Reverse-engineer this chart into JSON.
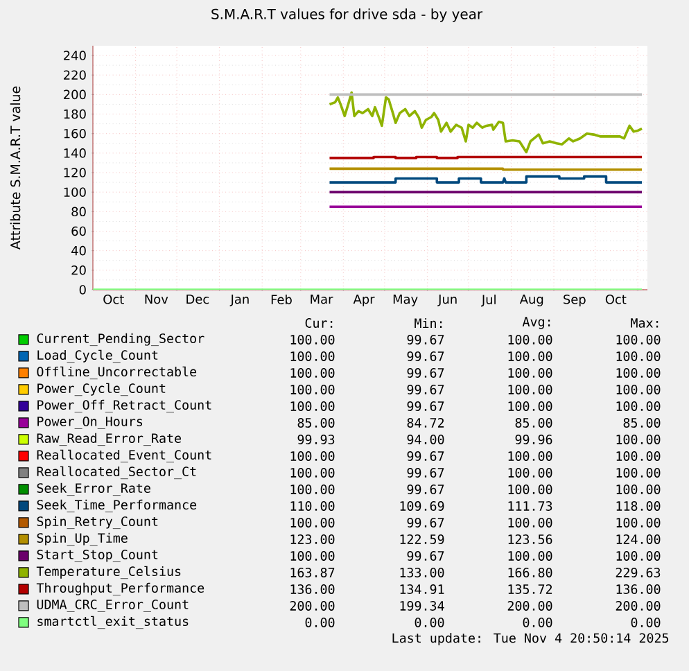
{
  "chart_data": {
    "type": "line",
    "title": "S.M.A.R.T values for drive sda - by year",
    "ylabel": "Attribute S.M.A.R.T value",
    "xlim": [
      "2024-10-01",
      "2025-11-08"
    ],
    "ylim": [
      0,
      250
    ],
    "yticks": [
      0,
      20,
      40,
      60,
      80,
      100,
      120,
      140,
      160,
      180,
      200,
      220,
      240
    ],
    "xticks": [
      {
        "value": "2024-10-16",
        "label": "Oct"
      },
      {
        "value": "2024-11-01",
        "label": null
      },
      {
        "value": "2024-11-16",
        "label": "Nov"
      },
      {
        "value": "2024-12-01",
        "label": null
      },
      {
        "value": "2024-12-16",
        "label": "Dec"
      },
      {
        "value": "2025-01-01",
        "label": null
      },
      {
        "value": "2025-01-16",
        "label": "Jan"
      },
      {
        "value": "2025-02-01",
        "label": null
      },
      {
        "value": "2025-02-15",
        "label": "Feb"
      },
      {
        "value": "2025-03-01",
        "label": null
      },
      {
        "value": "2025-03-16",
        "label": "Mar"
      },
      {
        "value": "2025-04-01",
        "label": null
      },
      {
        "value": "2025-04-16",
        "label": "Apr"
      },
      {
        "value": "2025-05-01",
        "label": null
      },
      {
        "value": "2025-05-16",
        "label": "May"
      },
      {
        "value": "2025-06-01",
        "label": null
      },
      {
        "value": "2025-06-16",
        "label": "Jun"
      },
      {
        "value": "2025-07-01",
        "label": null
      },
      {
        "value": "2025-07-16",
        "label": "Jul"
      },
      {
        "value": "2025-08-01",
        "label": null
      },
      {
        "value": "2025-08-16",
        "label": "Aug"
      },
      {
        "value": "2025-09-01",
        "label": null
      },
      {
        "value": "2025-09-16",
        "label": "Sep"
      },
      {
        "value": "2025-10-01",
        "label": null
      },
      {
        "value": "2025-10-16",
        "label": "Oct"
      },
      {
        "value": "2025-11-01",
        "label": null
      }
    ],
    "grid": true,
    "legend": "bottom",
    "series": [
      {
        "name": "Current_Pending_Sector",
        "color": "#00cc00",
        "values": [
          null,
          null
        ]
      },
      {
        "name": "Load_Cycle_Count",
        "color": "#0066b3",
        "values": [
          null,
          null
        ]
      },
      {
        "name": "Offline_Uncorrectable",
        "color": "#ff8000",
        "values": [
          null,
          null
        ]
      },
      {
        "name": "Power_Cycle_Count",
        "color": "#ffcc00",
        "values": [
          null,
          null
        ]
      },
      {
        "name": "Power_Off_Retract_Count",
        "color": "#330099",
        "values": [
          null,
          null
        ]
      },
      {
        "name": "Power_On_Hours",
        "color": "#990099",
        "x": [
          "2025-03-22",
          "2025-11-04"
        ],
        "values": [
          85,
          85
        ]
      },
      {
        "name": "Raw_Read_Error_Rate",
        "color": "#ccff00",
        "values": [
          null,
          null
        ]
      },
      {
        "name": "Reallocated_Event_Count",
        "color": "#ff0000",
        "values": [
          null,
          null
        ]
      },
      {
        "name": "Reallocated_Sector_Ct",
        "color": "#808080",
        "values": [
          null,
          null
        ]
      },
      {
        "name": "Seek_Error_Rate",
        "color": "#008f00",
        "values": [
          null,
          null
        ]
      },
      {
        "name": "Seek_Time_Performance",
        "color": "#00487d",
        "x": [
          "2025-03-22",
          "2025-05-09",
          "2025-05-09",
          "2025-06-08",
          "2025-06-08",
          "2025-06-24",
          "2025-06-24",
          "2025-07-10",
          "2025-07-10",
          "2025-07-26",
          "2025-07-27",
          "2025-07-28",
          "2025-08-12",
          "2025-08-12",
          "2025-09-05",
          "2025-09-05",
          "2025-09-23",
          "2025-09-23",
          "2025-10-09",
          "2025-10-09",
          "2025-11-04"
        ],
        "values": [
          110,
          110,
          114,
          114,
          110,
          110,
          114,
          114,
          110,
          110,
          114,
          110,
          110,
          116,
          116,
          114,
          114,
          116,
          116,
          110,
          110
        ]
      },
      {
        "name": "Spin_Retry_Count",
        "color": "#b35a00",
        "values": [
          null,
          null
        ]
      },
      {
        "name": "Spin_Up_Time",
        "color": "#b38f00",
        "x": [
          "2025-03-22",
          "2025-07-26",
          "2025-07-26",
          "2025-11-04"
        ],
        "values": [
          124,
          124,
          123,
          123
        ]
      },
      {
        "name": "Start_Stop_Count",
        "color": "#6b006b",
        "x": [
          "2025-03-22",
          "2025-11-04"
        ],
        "values": [
          100,
          100
        ]
      },
      {
        "name": "Temperature_Celsius",
        "color": "#8fb300",
        "x": [
          "2025-03-22",
          "2025-03-26",
          "2025-03-28",
          "2025-03-30",
          "2025-04-02",
          "2025-04-05",
          "2025-04-07",
          "2025-04-09",
          "2025-04-12",
          "2025-04-15",
          "2025-04-19",
          "2025-04-22",
          "2025-04-24",
          "2025-04-27",
          "2025-04-29",
          "2025-05-02",
          "2025-05-04",
          "2025-05-07",
          "2025-05-09",
          "2025-05-12",
          "2025-05-16",
          "2025-05-19",
          "2025-05-23",
          "2025-05-26",
          "2025-05-28",
          "2025-05-31",
          "2025-06-04",
          "2025-06-06",
          "2025-06-09",
          "2025-06-11",
          "2025-06-15",
          "2025-06-18",
          "2025-06-22",
          "2025-06-26",
          "2025-06-29",
          "2025-07-01",
          "2025-07-04",
          "2025-07-07",
          "2025-07-11",
          "2025-07-14",
          "2025-07-18",
          "2025-07-19",
          "2025-07-23",
          "2025-07-26",
          "2025-07-28",
          "2025-08-02",
          "2025-08-07",
          "2025-08-12",
          "2025-08-15",
          "2025-08-21",
          "2025-08-24",
          "2025-08-29",
          "2025-09-03",
          "2025-09-07",
          "2025-09-12",
          "2025-09-15",
          "2025-09-20",
          "2025-09-25",
          "2025-09-30",
          "2025-10-05",
          "2025-10-12",
          "2025-10-19",
          "2025-10-22",
          "2025-10-26",
          "2025-10-29",
          "2025-11-01",
          "2025-11-04"
        ],
        "values": [
          190,
          192,
          197,
          190,
          178,
          192,
          202,
          178,
          183,
          181,
          185,
          178,
          187,
          176,
          168,
          197,
          195,
          181,
          171,
          181,
          185,
          178,
          183,
          176,
          166,
          174,
          177,
          181,
          174,
          162,
          171,
          162,
          169,
          166,
          152,
          169,
          166,
          171,
          166,
          168,
          169,
          164,
          172,
          171,
          152,
          153,
          152,
          141,
          152,
          159,
          150,
          152,
          150,
          149,
          155,
          152,
          155,
          160,
          159,
          157,
          157,
          157,
          155,
          168,
          162,
          163,
          165
        ]
      },
      {
        "name": "Throughput_Performance",
        "color": "#b30000",
        "x": [
          "2025-03-22",
          "2025-04-23",
          "2025-04-23",
          "2025-05-09",
          "2025-05-09",
          "2025-05-24",
          "2025-05-24",
          "2025-06-08",
          "2025-06-08",
          "2025-06-23",
          "2025-06-23",
          "2025-11-04"
        ],
        "values": [
          135,
          135,
          136,
          136,
          135,
          135,
          136,
          136,
          135,
          135,
          136,
          136
        ]
      },
      {
        "name": "UDMA_CRC_Error_Count",
        "color": "#bebebe",
        "x": [
          "2025-03-22",
          "2025-11-04"
        ],
        "values": [
          200,
          200
        ]
      },
      {
        "name": "smartctl_exit_status",
        "color": "#80ff80",
        "x": [
          "2024-10-01",
          "2025-11-04"
        ],
        "values": [
          0,
          0
        ]
      }
    ],
    "annotations": [
      "Cur:",
      "Min:",
      "Avg:",
      "Max:",
      "100.00",
      "99.67",
      "100.00",
      "100.00",
      "100.00",
      "99.67",
      "100.00",
      "100.00",
      "100.00",
      "99.67",
      "100.00",
      "100.00",
      "100.00",
      "99.67",
      "100.00",
      "100.00",
      "100.00",
      "99.67",
      "100.00",
      "100.00",
      "85.00",
      "84.72",
      "85.00",
      "85.00",
      "99.93",
      "94.00",
      "99.96",
      "100.00",
      "100.00",
      "99.67",
      "100.00",
      "100.00",
      "100.00",
      "99.67",
      "100.00",
      "100.00",
      "100.00",
      "99.67",
      "100.00",
      "100.00",
      "110.00",
      "109.69",
      "111.73",
      "118.00",
      "100.00",
      "99.67",
      "100.00",
      "100.00",
      "123.00",
      "122.59",
      "123.56",
      "124.00",
      "100.00",
      "99.67",
      "100.00",
      "100.00",
      "163.87",
      "133.00",
      "166.80",
      "229.63",
      "136.00",
      "134.91",
      "135.72",
      "136.00",
      "200.00",
      "199.34",
      "200.00",
      "200.00",
      "0.00",
      "0.00",
      "0.00",
      "0.00",
      "Last update:  Tue Nov  4 20:50:14 2025"
    ]
  }
}
